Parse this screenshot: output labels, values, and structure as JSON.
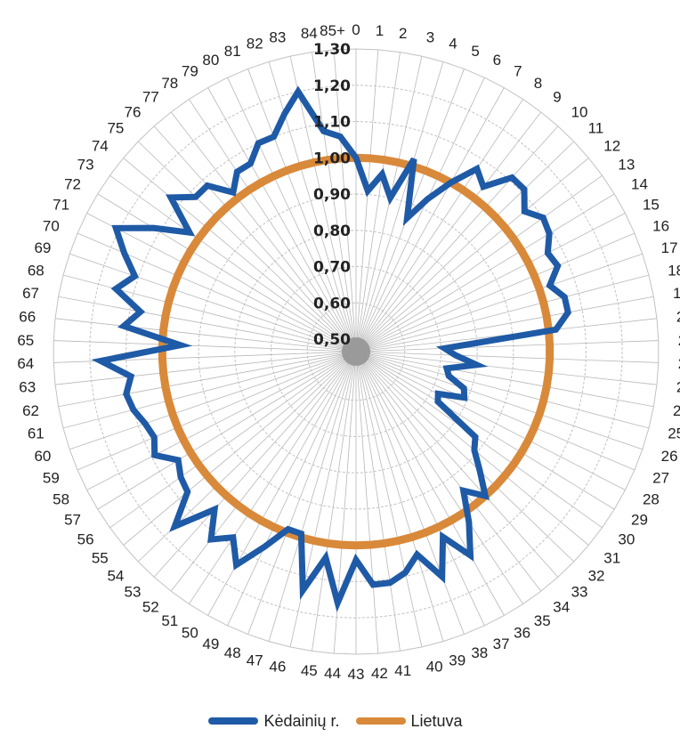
{
  "chart_data": {
    "type": "radar",
    "categories": [
      "0",
      "1",
      "2",
      "3",
      "4",
      "5",
      "6",
      "7",
      "8",
      "9",
      "10",
      "11",
      "12",
      "13",
      "14",
      "15",
      "16",
      "17",
      "18",
      "19",
      "20",
      "21",
      "22",
      "23",
      "24",
      "25",
      "26",
      "27",
      "28",
      "29",
      "30",
      "31",
      "32",
      "33",
      "34",
      "35",
      "36",
      "37",
      "38",
      "39",
      "40",
      "41",
      "42",
      "43",
      "44",
      "45",
      "46",
      "47",
      "48",
      "49",
      "50",
      "51",
      "52",
      "53",
      "54",
      "55",
      "56",
      "57",
      "58",
      "59",
      "60",
      "61",
      "62",
      "63",
      "64",
      "65",
      "66",
      "67",
      "68",
      "69",
      "70",
      "71",
      "72",
      "73",
      "74",
      "75",
      "76",
      "77",
      "78",
      "79",
      "80",
      "81",
      "82",
      "83",
      "84",
      "85+"
    ],
    "rings": [
      "0,50",
      "0,60",
      "0,70",
      "0,80",
      "0,90",
      "1,00",
      "1,10",
      "1,20",
      "1,30"
    ],
    "rlim": [
      0.5,
      1.3
    ],
    "series": [
      {
        "name": "Kėdainių r.",
        "color": "#1f5aa6",
        "values": [
          1.0,
          0.91,
          0.96,
          0.9,
          1.02,
          0.86,
          0.93,
          1.0,
          1.07,
          1.04,
          1.11,
          1.11,
          1.07,
          1.1,
          1.09,
          1.06,
          1.07,
          1.03,
          1.06,
          1.06,
          1.02,
          0.71,
          0.74,
          0.8,
          0.72,
          0.73,
          0.78,
          0.79,
          0.72,
          0.73,
          0.87,
          0.89,
          0.94,
          1.0,
          0.95,
          1.03,
          1.11,
          1.03,
          1.13,
          1.05,
          1.09,
          1.11,
          1.11,
          1.04,
          1.16,
          1.04,
          1.14,
          0.99,
          0.99,
          1.06,
          1.14,
          1.08,
          1.12,
          1.05,
          1.16,
          1.07,
          1.06,
          1.04,
          1.09,
          1.07,
          1.08,
          1.1,
          1.11,
          1.09,
          1.17,
          0.95,
          1.11,
          1.07,
          1.15,
          1.11,
          1.16,
          1.21,
          1.12,
          1.03,
          1.13,
          1.08,
          1.08,
          1.02,
          1.06,
          1.06,
          1.1,
          1.1,
          1.15,
          1.2,
          1.08,
          1.06
        ]
      },
      {
        "name": "Lietuva",
        "color": "#d9893a",
        "values": [
          1.0,
          1.0,
          1.0,
          1.0,
          1.0,
          1.0,
          1.0,
          1.0,
          1.0,
          1.0,
          1.0,
          1.0,
          1.0,
          1.0,
          1.0,
          1.0,
          1.0,
          1.0,
          1.0,
          1.0,
          1.0,
          1.0,
          1.0,
          1.0,
          1.0,
          1.0,
          1.0,
          1.0,
          1.0,
          1.0,
          1.0,
          1.0,
          1.0,
          1.0,
          1.0,
          1.0,
          1.0,
          1.0,
          1.0,
          1.0,
          1.0,
          1.0,
          1.0,
          1.0,
          1.0,
          1.0,
          1.0,
          1.0,
          1.0,
          1.0,
          1.0,
          1.0,
          1.0,
          1.0,
          1.0,
          1.0,
          1.0,
          1.0,
          1.0,
          1.0,
          1.0,
          1.0,
          1.0,
          1.0,
          1.0,
          1.0,
          1.0,
          1.0,
          1.0,
          1.0,
          1.0,
          1.0,
          1.0,
          1.0,
          1.0,
          1.0,
          1.0,
          1.0,
          1.0,
          1.0,
          1.0,
          1.0,
          1.0,
          1.0,
          1.0,
          1.0
        ]
      }
    ],
    "legend_position": "bottom",
    "grid": true
  }
}
